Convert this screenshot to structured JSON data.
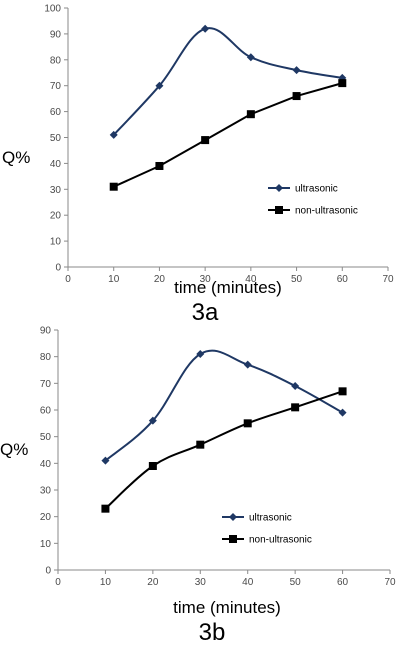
{
  "chart_data": [
    {
      "type": "line",
      "caption": "3a",
      "xlabel": "time (minutes)",
      "ylabel": "Q%",
      "xlim": [
        0,
        70
      ],
      "ylim": [
        0,
        100
      ],
      "xticks": [
        "0",
        "10",
        "20",
        "30",
        "40",
        "50",
        "60",
        "70"
      ],
      "yticks": [
        "0",
        "10",
        "20",
        "30",
        "40",
        "50",
        "60",
        "70",
        "80",
        "90",
        "100"
      ],
      "grid": false,
      "legend_position": "center-right",
      "series": [
        {
          "name": "ultrasonic",
          "marker": "diamond",
          "smooth": true,
          "color": "#1f3864",
          "x": [
            10,
            20,
            30,
            40,
            50,
            60
          ],
          "y": [
            51,
            70,
            92,
            81,
            76,
            73
          ]
        },
        {
          "name": "non-ultrasonic",
          "marker": "square",
          "smooth": false,
          "color": "#000000",
          "x": [
            10,
            20,
            30,
            40,
            50,
            60
          ],
          "y": [
            31,
            39,
            49,
            59,
            66,
            71
          ]
        }
      ]
    },
    {
      "type": "line",
      "caption": "3b",
      "xlabel": "time (minutes)",
      "ylabel": "Q%",
      "xlim": [
        0,
        70
      ],
      "ylim": [
        0,
        90
      ],
      "xticks": [
        "0",
        "10",
        "20",
        "30",
        "40",
        "50",
        "60",
        "70"
      ],
      "yticks": [
        "0",
        "10",
        "20",
        "30",
        "40",
        "50",
        "60",
        "70",
        "80",
        "90"
      ],
      "grid": false,
      "legend_position": "bottom-right",
      "series": [
        {
          "name": "ultrasonic",
          "marker": "diamond",
          "smooth": true,
          "color": "#1f3864",
          "x": [
            10,
            20,
            30,
            40,
            50,
            60
          ],
          "y": [
            41,
            56,
            81,
            77,
            69,
            59
          ]
        },
        {
          "name": "non-ultrasonic",
          "marker": "square",
          "smooth": true,
          "color": "#000000",
          "x": [
            10,
            20,
            30,
            40,
            50,
            60
          ],
          "y": [
            23,
            39,
            47,
            55,
            61,
            67
          ]
        }
      ]
    }
  ]
}
